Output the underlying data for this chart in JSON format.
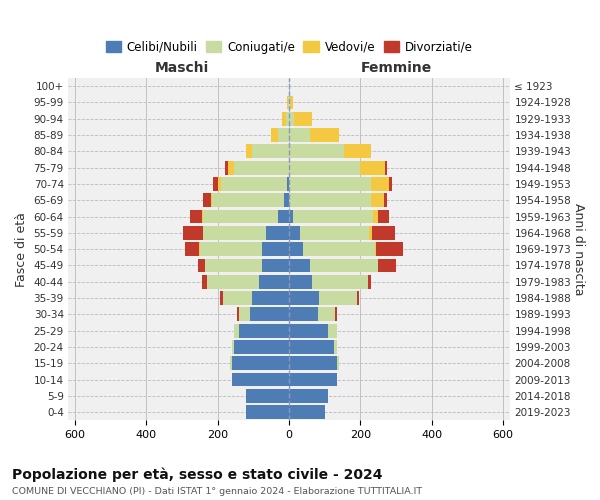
{
  "age_groups": [
    "0-4",
    "5-9",
    "10-14",
    "15-19",
    "20-24",
    "25-29",
    "30-34",
    "35-39",
    "40-44",
    "45-49",
    "50-54",
    "55-59",
    "60-64",
    "65-69",
    "70-74",
    "75-79",
    "80-84",
    "85-89",
    "90-94",
    "95-99",
    "100+"
  ],
  "birth_years": [
    "2019-2023",
    "2014-2018",
    "2009-2013",
    "2004-2008",
    "1999-2003",
    "1994-1998",
    "1989-1993",
    "1984-1988",
    "1979-1983",
    "1974-1978",
    "1969-1973",
    "1964-1968",
    "1959-1963",
    "1954-1958",
    "1949-1953",
    "1944-1948",
    "1939-1943",
    "1934-1938",
    "1929-1933",
    "1924-1928",
    "≤ 1923"
  ],
  "maschi": {
    "celibi": [
      120,
      120,
      160,
      160,
      155,
      140,
      110,
      105,
      85,
      75,
      75,
      65,
      30,
      15,
      5,
      0,
      0,
      0,
      0,
      0,
      0
    ],
    "coniugati": [
      0,
      0,
      0,
      5,
      5,
      15,
      30,
      80,
      145,
      160,
      175,
      175,
      210,
      200,
      185,
      155,
      105,
      30,
      8,
      2,
      0
    ],
    "vedovi": [
      0,
      0,
      0,
      0,
      0,
      0,
      0,
      0,
      0,
      0,
      2,
      2,
      3,
      5,
      8,
      15,
      15,
      20,
      12,
      4,
      0
    ],
    "divorziati": [
      0,
      0,
      0,
      0,
      0,
      0,
      5,
      10,
      15,
      20,
      40,
      55,
      35,
      20,
      15,
      10,
      0,
      0,
      0,
      0,
      0
    ]
  },
  "femmine": {
    "nubili": [
      100,
      110,
      135,
      135,
      125,
      110,
      80,
      85,
      65,
      60,
      40,
      30,
      10,
      0,
      0,
      0,
      0,
      0,
      0,
      0,
      0
    ],
    "coniugate": [
      0,
      0,
      0,
      5,
      10,
      25,
      50,
      105,
      155,
      190,
      200,
      195,
      225,
      230,
      230,
      200,
      155,
      60,
      15,
      2,
      0
    ],
    "vedove": [
      0,
      0,
      0,
      0,
      0,
      0,
      0,
      0,
      0,
      0,
      5,
      8,
      15,
      35,
      50,
      70,
      75,
      80,
      50,
      8,
      0
    ],
    "divorziate": [
      0,
      0,
      0,
      0,
      0,
      0,
      5,
      5,
      10,
      50,
      75,
      65,
      30,
      10,
      8,
      5,
      0,
      0,
      0,
      0,
      0
    ]
  },
  "colors": {
    "celibi": "#4e7db5",
    "coniugati": "#c8dba0",
    "vedovi": "#f5c842",
    "divorziati": "#c0392b"
  },
  "xlim": 620,
  "title": "Popolazione per età, sesso e stato civile - 2024",
  "subtitle": "COMUNE DI VECCHIANO (PI) - Dati ISTAT 1° gennaio 2024 - Elaborazione TUTTITALIA.IT",
  "xlabel_left": "Maschi",
  "xlabel_right": "Femmine",
  "ylabel_left": "Fasce di età",
  "ylabel_right": "Anni di nascita",
  "bg_color": "#ffffff",
  "plot_bg": "#f0f0f0"
}
